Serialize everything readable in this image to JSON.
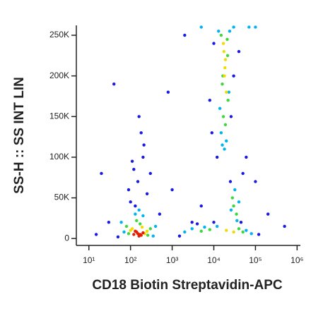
{
  "chart_data": {
    "type": "scatter",
    "x_label": "CD18 Biotin Streptavidin-APC",
    "y_label": "SS-H :: SS INT LIN",
    "xscale": "log",
    "xlim": [
      5,
      1200000
    ],
    "ylim": [
      -8500,
      262144
    ],
    "xticks": [
      {
        "value": 10,
        "label": "10¹"
      },
      {
        "value": 100,
        "label": "10²"
      },
      {
        "value": 1000,
        "label": "10³"
      },
      {
        "value": 10000,
        "label": "10⁴"
      },
      {
        "value": 100000,
        "label": "10⁵"
      },
      {
        "value": 1000000,
        "label": "10⁶"
      }
    ],
    "yticks": [
      0,
      {
        "value": 50000,
        "label": "50K"
      },
      {
        "value": 100000,
        "label": "100K"
      },
      {
        "value": 150000,
        "label": "150K"
      },
      {
        "value": 200000,
        "label": "200K"
      },
      {
        "value": 250000,
        "label": "250K"
      }
    ],
    "series": [
      {
        "color": "#1a1ae6",
        "x": [
          100,
          150,
          200,
          120,
          180,
          250,
          90,
          160,
          210,
          130,
          300,
          110,
          10000,
          30000,
          8000,
          40000,
          12000,
          26000,
          9000,
          15,
          30,
          20,
          500,
          1000,
          3000,
          5000,
          800,
          2000,
          60000,
          100000,
          200000,
          500000,
          40,
          50,
          50000,
          25000,
          45000,
          1500,
          4000,
          10000,
          120000
        ],
        "values": [
          45000,
          70000,
          100000,
          85000,
          130000,
          55000,
          60000,
          150000,
          115000,
          40000,
          80000,
          95000,
          240000,
          200000,
          170000,
          230000,
          100000,
          150000,
          130000,
          5000,
          20000,
          80000,
          30000,
          60000,
          20000,
          40000,
          180000,
          250000,
          100000,
          70000,
          30000,
          15000,
          190000,
          2000,
          80000,
          70000,
          20000,
          3000,
          18000,
          20000,
          5000
        ]
      },
      {
        "color": "#00b4f0",
        "x": [
          60,
          400,
          70,
          350,
          130,
          200,
          160,
          13000,
          24000,
          14000,
          23000,
          15000,
          20000,
          16000,
          18000,
          2000,
          3000,
          60000,
          80000,
          6000,
          12000,
          32000,
          40000,
          26000,
          36000,
          5000,
          30000,
          70000,
          100000
        ],
        "values": [
          20000,
          15000,
          8000,
          3000,
          30000,
          28000,
          35000,
          255000,
          255000,
          160000,
          180000,
          130000,
          120000,
          115000,
          110000,
          8000,
          12000,
          10000,
          6000,
          14000,
          15000,
          60000,
          45000,
          35000,
          22000,
          260000,
          260000,
          260000,
          260000
        ]
      },
      {
        "color": "#3cd83c",
        "x": [
          80,
          300,
          90,
          260,
          140,
          170,
          15000,
          21000,
          16000,
          22000,
          17000,
          19000,
          16500,
          21500,
          5000,
          8000,
          40000,
          50000,
          30000,
          35000,
          28000
        ],
        "values": [
          15000,
          12000,
          6000,
          4000,
          22000,
          18000,
          250000,
          245000,
          190000,
          170000,
          150000,
          140000,
          200000,
          225000,
          9000,
          11000,
          12000,
          8000,
          40000,
          30000,
          50000
        ]
      },
      {
        "color": "#f0dc00",
        "x": [
          100,
          220,
          110,
          250,
          190,
          17000,
          19000,
          18000,
          20000,
          18500,
          17500,
          20000,
          30000
        ],
        "values": [
          10000,
          6000,
          12000,
          9000,
          14000,
          240000,
          220000,
          200000,
          180000,
          210000,
          230000,
          10000,
          8000
        ]
      },
      {
        "color": "#e02000",
        "x": [
          120,
          150,
          180,
          140,
          160,
          200,
          130,
          170
        ],
        "values": [
          5000,
          6000,
          4000,
          8000,
          3000,
          7000,
          9000,
          5000
        ]
      }
    ]
  }
}
